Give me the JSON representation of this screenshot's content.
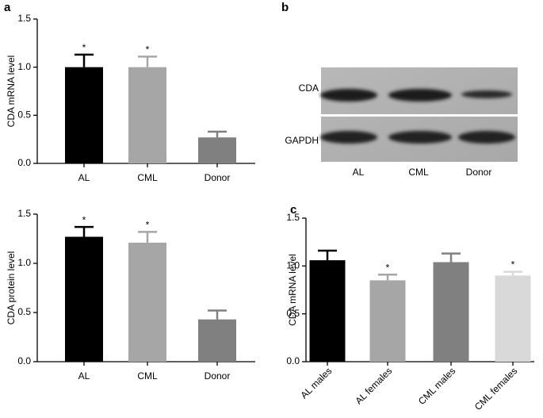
{
  "chart_data": [
    {
      "type": "bar",
      "panel_label": "a",
      "y_label": "CDA mRNA level",
      "categories": [
        "AL",
        "CML",
        "Donor"
      ],
      "values": [
        1.0,
        1.0,
        0.27
      ],
      "errors": [
        0.13,
        0.11,
        0.06
      ],
      "annotations": [
        "*",
        "*",
        null
      ],
      "colors": [
        "#000000",
        "#a6a6a6",
        "#808080"
      ],
      "ylim": [
        0,
        1.5
      ],
      "yticks": [
        {
          "value": 0,
          "label": "0.0"
        },
        0.5,
        {
          "value": 1,
          "label": "1.0"
        },
        1.5
      ]
    },
    {
      "type": "bar",
      "y_label": "CDA protein level",
      "categories": [
        "AL",
        "CML",
        "Donor"
      ],
      "values": [
        1.27,
        1.21,
        0.43
      ],
      "errors": [
        0.1,
        0.11,
        0.09
      ],
      "annotations": [
        "*",
        "*",
        null
      ],
      "colors": [
        "#000000",
        "#a6a6a6",
        "#808080"
      ],
      "ylim": [
        0,
        1.5
      ],
      "yticks": [
        {
          "value": 0,
          "label": "0.0"
        },
        0.5,
        {
          "value": 1,
          "label": "1.0"
        },
        1.5
      ]
    },
    {
      "type": "bar",
      "panel_label": "c",
      "y_label": "CDA mRNA level",
      "categories": [
        "AL males",
        "AL females",
        "CML males",
        "CML females"
      ],
      "values": [
        1.06,
        0.85,
        1.04,
        0.9
      ],
      "errors": [
        0.1,
        0.06,
        0.09,
        0.04
      ],
      "annotations": [
        null,
        "*",
        null,
        "*"
      ],
      "colors": [
        "#000000",
        "#a6a6a6",
        "#808080",
        "#d9d9d9"
      ],
      "ylim": [
        0,
        1.5
      ],
      "yticks": [
        {
          "value": 0,
          "label": "0.0"
        },
        0.5,
        {
          "value": 1,
          "label": "1.0"
        },
        1.5
      ]
    }
  ],
  "blot": {
    "panel_label": "b",
    "rows": [
      "CDA",
      "GAPDH"
    ],
    "lanes": [
      "AL",
      "CML",
      "Donor"
    ]
  }
}
